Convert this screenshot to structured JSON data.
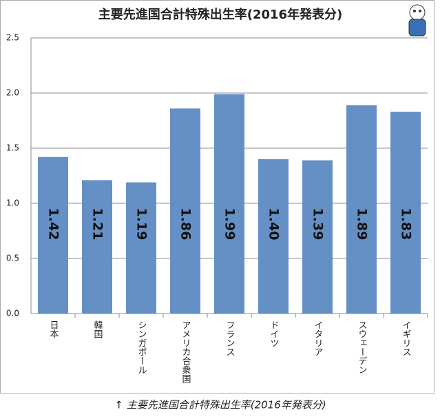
{
  "chart_data": {
    "type": "bar",
    "title": "主要先進国合計特殊出生率(2016年発表分)",
    "categories": [
      "日本",
      "韓国",
      "シンガポール",
      "アメリカ合衆国",
      "フランス",
      "ドイツ",
      "イタリア",
      "スウェーデン",
      "イギリス"
    ],
    "values": [
      1.42,
      1.21,
      1.19,
      1.86,
      1.99,
      1.4,
      1.39,
      1.89,
      1.83
    ],
    "value_labels": [
      "1.42",
      "1.21",
      "1.19",
      "1.86",
      "1.99",
      "1.40",
      "1.39",
      "1.89",
      "1.83"
    ],
    "color": "#6590c6",
    "ylim": [
      0,
      2.5
    ],
    "yticks": [
      {
        "value": 0,
        "label": "0.0"
      },
      0.5,
      {
        "value": 1,
        "label": "1.0"
      },
      1.5,
      {
        "value": 2,
        "label": "2.0"
      },
      2.5
    ],
    "grid": true
  },
  "caption": "↑ 主要先進国合計特殊出生率(2016年発表分)"
}
